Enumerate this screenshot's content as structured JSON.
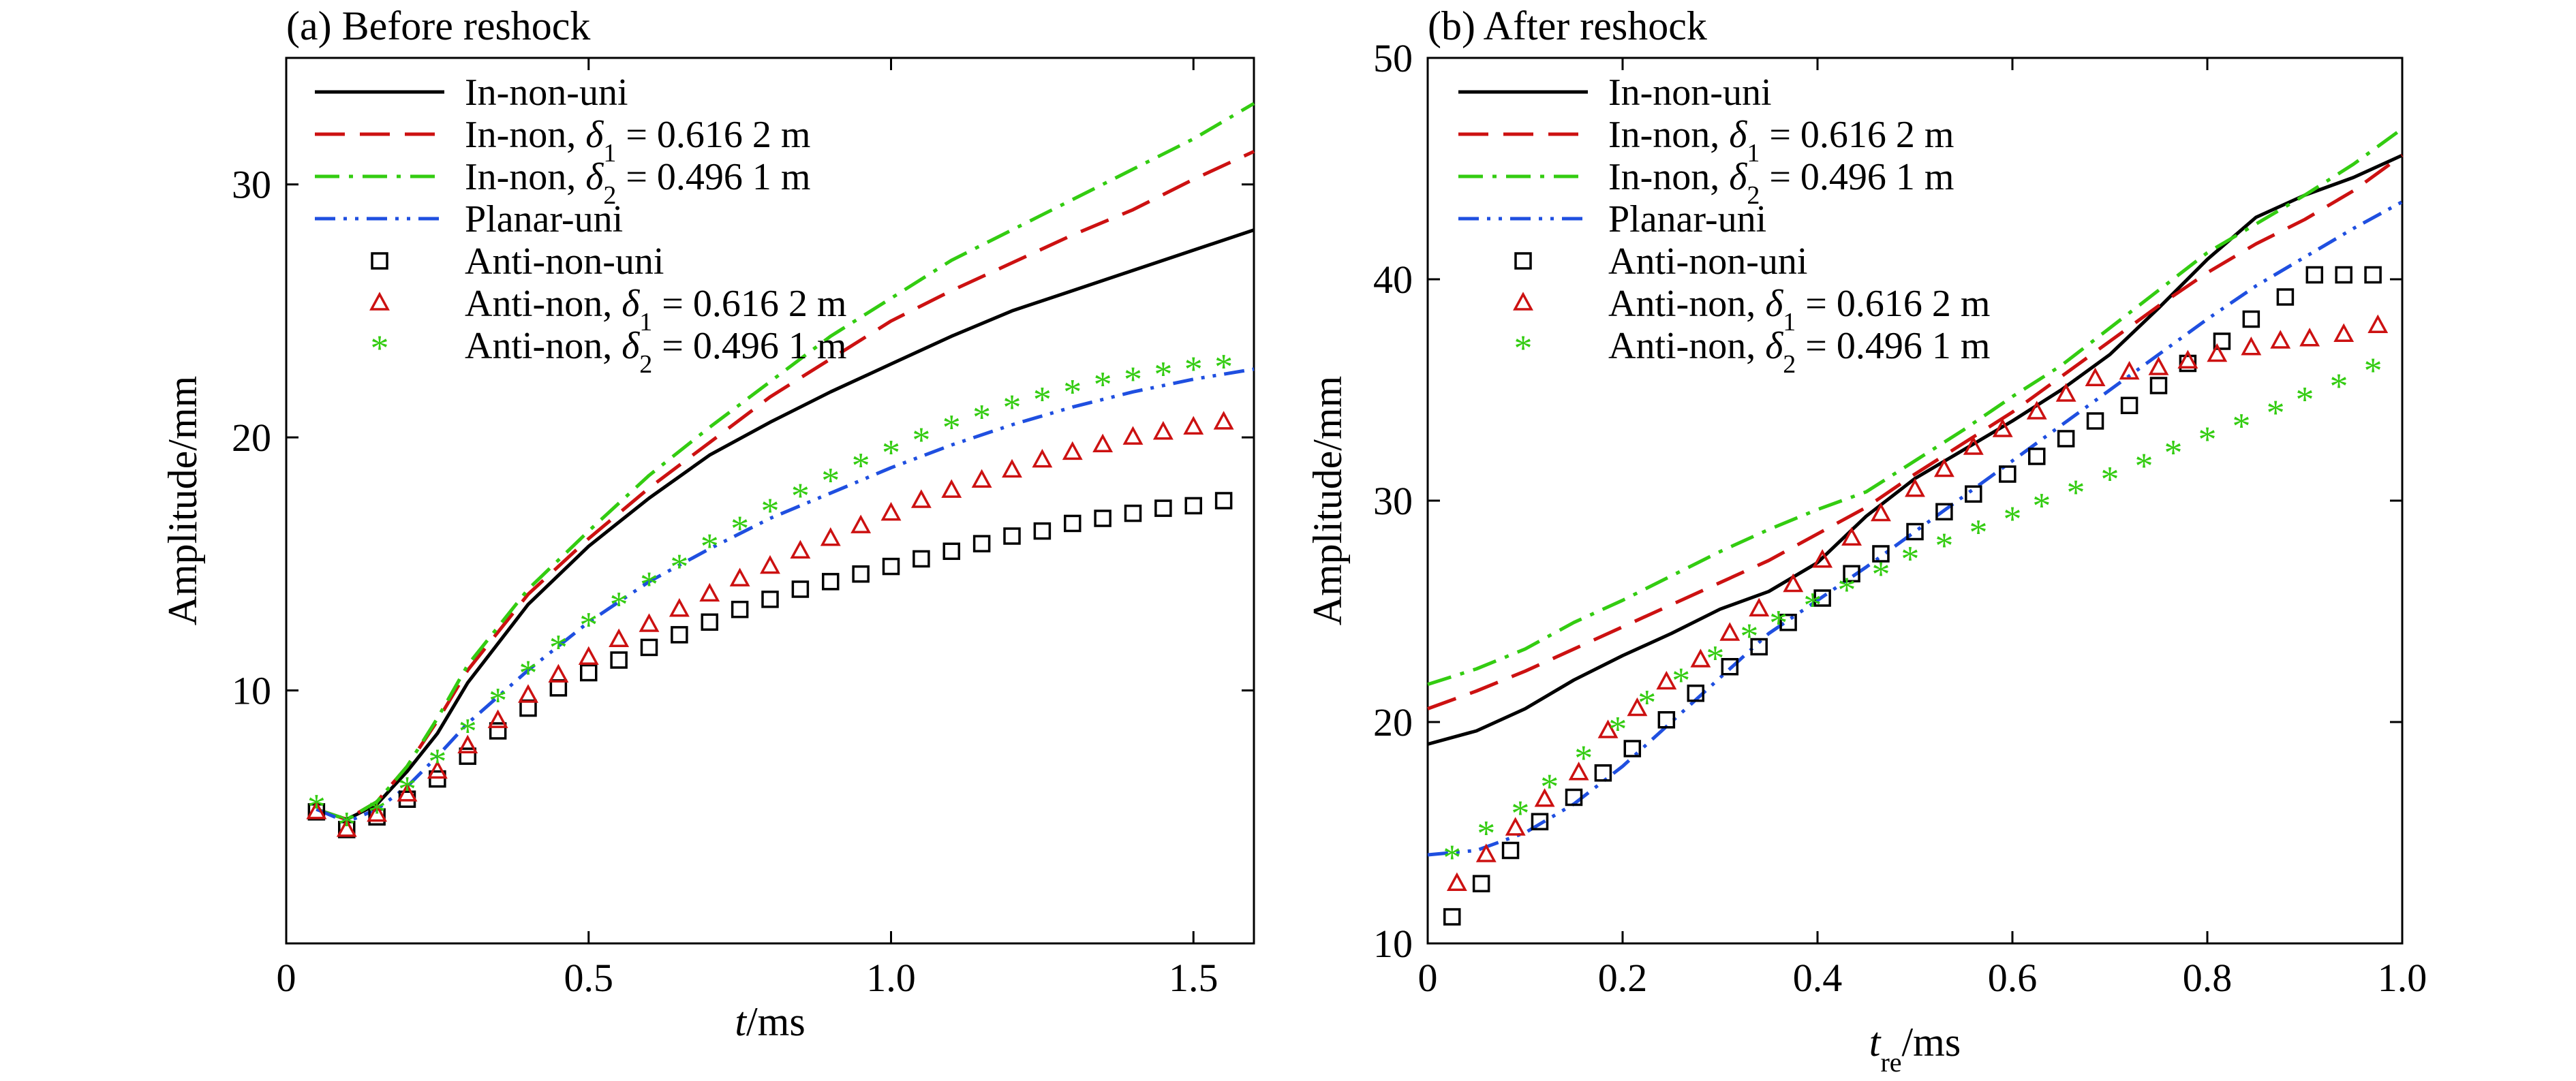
{
  "figure": {
    "panels": [
      {
        "title": "(a) Before reshock",
        "ylabel": "Amplitude/mm",
        "xlabel": {
          "main": "t",
          "sub": "",
          "unit": "/ms"
        },
        "xlim": [
          0,
          1.6
        ],
        "ylim": [
          0,
          35
        ],
        "xticks": [
          0,
          0.5,
          1.0,
          1.5
        ],
        "xtick_labels": [
          "0",
          "0.5",
          "1.0",
          "1.5"
        ],
        "yticks": [
          10,
          20,
          30
        ],
        "ytick_labels": [
          "10",
          "20",
          "30"
        ]
      },
      {
        "title": "(b) After reshock",
        "ylabel": "Amplitude/mm",
        "xlabel": {
          "main": "t",
          "sub": "re",
          "unit": "/ms"
        },
        "xlim": [
          0,
          1.0
        ],
        "ylim": [
          10,
          50
        ],
        "xticks": [
          0,
          0.2,
          0.4,
          0.6,
          0.8,
          1.0
        ],
        "xtick_labels": [
          "0",
          "0.2",
          "0.4",
          "0.6",
          "0.8",
          "1.0"
        ],
        "yticks": [
          10,
          20,
          30,
          40,
          50
        ],
        "ytick_labels": [
          "10",
          "20",
          "30",
          "40",
          "50"
        ]
      }
    ],
    "legend": [
      {
        "name": "In-non-uni",
        "prefix": "In-non-uni",
        "delta": "",
        "value": ""
      },
      {
        "name": "In-non, δ1 = 0.616 2 m",
        "prefix": "In-non, ",
        "delta": "1",
        "value": " = 0.616 2 m"
      },
      {
        "name": "In-non, δ2 = 0.496 1 m",
        "prefix": "In-non, ",
        "delta": "2",
        "value": " = 0.496 1 m"
      },
      {
        "name": "Planar-uni",
        "prefix": "Planar-uni",
        "delta": "",
        "value": ""
      },
      {
        "name": "Anti-non-uni",
        "prefix": "Anti-non-uni",
        "delta": "",
        "value": ""
      },
      {
        "name": "Anti-non, δ1 = 0.616 2 m",
        "prefix": "Anti-non, ",
        "delta": "1",
        "value": " = 0.616 2 m"
      },
      {
        "name": "Anti-non, δ2 = 0.496 1 m",
        "prefix": "Anti-non, ",
        "delta": "2",
        "value": " = 0.496 1 m"
      }
    ],
    "colors": {
      "in_non_uni": "#000000",
      "in_non_d1": "#cc1111",
      "in_non_d2": "#33cc11",
      "planar_uni": "#1f4fe0",
      "anti_non_uni": "#000000",
      "anti_non_d1": "#cc1111",
      "anti_non_d2": "#33cc11"
    }
  },
  "chart_data": [
    {
      "type": "line",
      "title": "(a) Before reshock",
      "xlabel": "t/ms",
      "ylabel": "Amplitude/mm",
      "xlim": [
        0,
        1.6
      ],
      "ylim": [
        0,
        35
      ],
      "grid": false,
      "legend_position": "top-left",
      "series": [
        {
          "name": "In-non-uni",
          "style": "solid",
          "color": "#000000",
          "x": [
            0.05,
            0.1,
            0.15,
            0.2,
            0.25,
            0.3,
            0.4,
            0.5,
            0.6,
            0.7,
            0.8,
            0.9,
            1.0,
            1.1,
            1.2,
            1.3,
            1.4,
            1.5,
            1.6
          ],
          "y": [
            5.3,
            4.9,
            5.5,
            6.8,
            8.3,
            10.3,
            13.4,
            15.7,
            17.6,
            19.3,
            20.6,
            21.8,
            22.9,
            24.0,
            25.0,
            25.8,
            26.6,
            27.4,
            28.2
          ]
        },
        {
          "name": "In-non, δ1 = 0.616 2 m",
          "style": "dash",
          "color": "#cc1111",
          "x": [
            0.05,
            0.1,
            0.15,
            0.2,
            0.25,
            0.3,
            0.4,
            0.5,
            0.6,
            0.7,
            0.8,
            0.9,
            1.0,
            1.1,
            1.2,
            1.3,
            1.4,
            1.5,
            1.6
          ],
          "y": [
            5.3,
            4.9,
            5.6,
            7.0,
            8.8,
            10.8,
            13.8,
            16.0,
            18.0,
            19.8,
            21.6,
            23.1,
            24.6,
            25.8,
            26.9,
            28.0,
            29.0,
            30.2,
            31.3
          ]
        },
        {
          "name": "In-non, δ2 = 0.496 1 m",
          "style": "dashdot",
          "color": "#33cc11",
          "x": [
            0.05,
            0.1,
            0.15,
            0.2,
            0.25,
            0.3,
            0.4,
            0.5,
            0.6,
            0.7,
            0.8,
            0.9,
            1.0,
            1.1,
            1.2,
            1.3,
            1.4,
            1.5,
            1.6
          ],
          "y": [
            5.3,
            4.9,
            5.6,
            7.0,
            8.9,
            11.0,
            14.0,
            16.3,
            18.5,
            20.4,
            22.2,
            24.0,
            25.5,
            27.0,
            28.2,
            29.4,
            30.6,
            31.8,
            33.2
          ]
        },
        {
          "name": "Planar-uni",
          "style": "dashdotdot",
          "color": "#1f4fe0",
          "x": [
            0.05,
            0.1,
            0.15,
            0.2,
            0.25,
            0.3,
            0.4,
            0.5,
            0.6,
            0.7,
            0.8,
            0.9,
            1.0,
            1.1,
            1.2,
            1.3,
            1.4,
            1.5,
            1.6
          ],
          "y": [
            5.3,
            4.8,
            5.3,
            6.2,
            7.4,
            8.7,
            10.8,
            12.7,
            14.3,
            15.6,
            16.8,
            17.8,
            18.8,
            19.7,
            20.5,
            21.2,
            21.8,
            22.3,
            22.7
          ]
        },
        {
          "name": "Anti-non-uni",
          "style": "square",
          "color": "#000000",
          "x": [
            0.05,
            0.1,
            0.15,
            0.2,
            0.25,
            0.3,
            0.35,
            0.4,
            0.45,
            0.5,
            0.55,
            0.6,
            0.65,
            0.7,
            0.75,
            0.8,
            0.85,
            0.9,
            0.95,
            1.0,
            1.05,
            1.1,
            1.15,
            1.2,
            1.25,
            1.3,
            1.35,
            1.4,
            1.45,
            1.5,
            1.55
          ],
          "y": [
            5.2,
            4.5,
            5.0,
            5.7,
            6.5,
            7.4,
            8.4,
            9.3,
            10.1,
            10.7,
            11.2,
            11.7,
            12.2,
            12.7,
            13.2,
            13.6,
            14.0,
            14.3,
            14.6,
            14.9,
            15.2,
            15.5,
            15.8,
            16.1,
            16.3,
            16.6,
            16.8,
            17.0,
            17.2,
            17.3,
            17.5
          ]
        },
        {
          "name": "Anti-non, δ1 = 0.616 2 m",
          "style": "triangle",
          "color": "#cc1111",
          "x": [
            0.05,
            0.1,
            0.15,
            0.2,
            0.25,
            0.3,
            0.35,
            0.4,
            0.45,
            0.5,
            0.55,
            0.6,
            0.65,
            0.7,
            0.75,
            0.8,
            0.85,
            0.9,
            0.95,
            1.0,
            1.05,
            1.1,
            1.15,
            1.2,
            1.25,
            1.3,
            1.35,
            1.4,
            1.45,
            1.5,
            1.55
          ],
          "y": [
            5.2,
            4.5,
            5.1,
            5.9,
            6.8,
            7.8,
            8.8,
            9.8,
            10.6,
            11.3,
            12.0,
            12.6,
            13.2,
            13.8,
            14.4,
            14.9,
            15.5,
            16.0,
            16.5,
            17.0,
            17.5,
            17.9,
            18.3,
            18.7,
            19.1,
            19.4,
            19.7,
            20.0,
            20.2,
            20.4,
            20.6
          ]
        },
        {
          "name": "Anti-non, δ2 = 0.496 1 m",
          "style": "star",
          "color": "#33cc11",
          "x": [
            0.05,
            0.1,
            0.15,
            0.2,
            0.25,
            0.3,
            0.35,
            0.4,
            0.45,
            0.5,
            0.55,
            0.6,
            0.65,
            0.7,
            0.75,
            0.8,
            0.85,
            0.9,
            0.95,
            1.0,
            1.05,
            1.1,
            1.15,
            1.2,
            1.25,
            1.3,
            1.35,
            1.4,
            1.45,
            1.5,
            1.55
          ],
          "y": [
            5.5,
            4.8,
            5.3,
            6.2,
            7.3,
            8.5,
            9.7,
            10.8,
            11.8,
            12.7,
            13.5,
            14.3,
            15.0,
            15.8,
            16.5,
            17.2,
            17.8,
            18.4,
            19.0,
            19.5,
            20.0,
            20.5,
            20.9,
            21.3,
            21.6,
            21.9,
            22.2,
            22.4,
            22.6,
            22.8,
            22.9
          ]
        }
      ]
    },
    {
      "type": "line",
      "title": "(b) After reshock",
      "xlabel": "tre/ms",
      "ylabel": "Amplitude/mm",
      "xlim": [
        0,
        1.0
      ],
      "ylim": [
        10,
        50
      ],
      "grid": false,
      "legend_position": "top-left",
      "series": [
        {
          "name": "In-non-uni",
          "style": "solid",
          "color": "#000000",
          "x": [
            0,
            0.05,
            0.1,
            0.15,
            0.2,
            0.25,
            0.3,
            0.35,
            0.4,
            0.45,
            0.5,
            0.55,
            0.6,
            0.65,
            0.7,
            0.75,
            0.8,
            0.85,
            0.9,
            0.95,
            1.0
          ],
          "y": [
            19.0,
            19.6,
            20.6,
            21.9,
            23.0,
            24.0,
            25.1,
            25.9,
            27.2,
            29.3,
            31.0,
            32.3,
            33.6,
            35.0,
            36.6,
            38.7,
            40.9,
            42.8,
            43.8,
            44.6,
            45.6
          ]
        },
        {
          "name": "In-non, δ1 = 0.616 2 m",
          "style": "dash",
          "color": "#cc1111",
          "x": [
            0,
            0.05,
            0.1,
            0.15,
            0.2,
            0.25,
            0.3,
            0.35,
            0.4,
            0.45,
            0.5,
            0.55,
            0.6,
            0.65,
            0.7,
            0.75,
            0.8,
            0.85,
            0.9,
            0.95,
            1.0
          ],
          "y": [
            20.6,
            21.4,
            22.3,
            23.3,
            24.3,
            25.3,
            26.3,
            27.3,
            28.5,
            29.7,
            31.2,
            32.6,
            34.0,
            35.6,
            37.2,
            38.8,
            40.3,
            41.6,
            42.7,
            44.0,
            45.6
          ]
        },
        {
          "name": "In-non, δ2 = 0.496 1 m",
          "style": "dashdot",
          "color": "#33cc11",
          "x": [
            0,
            0.05,
            0.1,
            0.15,
            0.2,
            0.25,
            0.3,
            0.35,
            0.4,
            0.45,
            0.5,
            0.55,
            0.6,
            0.65,
            0.7,
            0.75,
            0.8,
            0.85,
            0.9,
            0.95,
            1.0
          ],
          "y": [
            21.7,
            22.4,
            23.3,
            24.5,
            25.5,
            26.6,
            27.7,
            28.7,
            29.6,
            30.4,
            31.8,
            33.2,
            34.7,
            36.1,
            37.8,
            39.5,
            41.2,
            42.5,
            43.8,
            45.2,
            46.8
          ]
        },
        {
          "name": "Planar-uni",
          "style": "dashdotdot",
          "color": "#1f4fe0",
          "x": [
            0,
            0.05,
            0.1,
            0.15,
            0.2,
            0.25,
            0.3,
            0.35,
            0.4,
            0.45,
            0.5,
            0.55,
            0.6,
            0.65,
            0.7,
            0.75,
            0.8,
            0.85,
            0.9,
            0.95,
            1.0
          ],
          "y": [
            14.0,
            14.2,
            15.0,
            16.3,
            18.0,
            20.0,
            22.0,
            24.0,
            25.5,
            27.0,
            28.6,
            30.2,
            31.8,
            33.4,
            35.0,
            36.6,
            38.2,
            39.7,
            41.0,
            42.3,
            43.5
          ]
        },
        {
          "name": "Anti-non-uni",
          "style": "square",
          "color": "#000000",
          "x": [
            0.025,
            0.055,
            0.085,
            0.115,
            0.15,
            0.18,
            0.21,
            0.245,
            0.275,
            0.31,
            0.34,
            0.37,
            0.405,
            0.435,
            0.465,
            0.5,
            0.53,
            0.56,
            0.595,
            0.625,
            0.655,
            0.685,
            0.72,
            0.75,
            0.78,
            0.815,
            0.845,
            0.88,
            0.91,
            0.94,
            0.97
          ],
          "y": [
            11.2,
            12.7,
            14.2,
            15.5,
            16.6,
            17.7,
            18.8,
            20.1,
            21.3,
            22.5,
            23.4,
            24.5,
            25.6,
            26.7,
            27.6,
            28.6,
            29.5,
            30.3,
            31.2,
            32.0,
            32.8,
            33.6,
            34.3,
            35.2,
            36.2,
            37.2,
            38.2,
            39.2,
            40.2,
            40.2,
            40.2
          ]
        },
        {
          "name": "Anti-non, δ1 = 0.616 2 m",
          "style": "triangle",
          "color": "#cc1111",
          "x": [
            0.03,
            0.06,
            0.09,
            0.12,
            0.155,
            0.185,
            0.215,
            0.245,
            0.28,
            0.31,
            0.34,
            0.375,
            0.405,
            0.435,
            0.465,
            0.5,
            0.53,
            0.56,
            0.59,
            0.625,
            0.655,
            0.685,
            0.72,
            0.75,
            0.78,
            0.81,
            0.845,
            0.875,
            0.905,
            0.94,
            0.975
          ],
          "y": [
            12.7,
            14.0,
            15.2,
            16.5,
            17.7,
            19.6,
            20.6,
            21.8,
            22.8,
            24.0,
            25.1,
            26.2,
            27.3,
            28.3,
            29.4,
            30.5,
            31.4,
            32.4,
            33.2,
            34.0,
            34.8,
            35.5,
            35.8,
            36.0,
            36.3,
            36.6,
            36.9,
            37.2,
            37.3,
            37.5,
            37.9
          ]
        },
        {
          "name": "Anti-non, δ2 = 0.496 1 m",
          "style": "star",
          "color": "#33cc11",
          "x": [
            0.025,
            0.06,
            0.095,
            0.125,
            0.16,
            0.195,
            0.225,
            0.26,
            0.295,
            0.33,
            0.36,
            0.395,
            0.43,
            0.465,
            0.495,
            0.53,
            0.565,
            0.6,
            0.63,
            0.665,
            0.7,
            0.735,
            0.765,
            0.8,
            0.835,
            0.87,
            0.9,
            0.935,
            0.97
          ],
          "y": [
            14.0,
            15.1,
            16.0,
            17.2,
            18.5,
            19.8,
            21.0,
            22.0,
            23.0,
            24.0,
            24.6,
            25.4,
            26.1,
            26.8,
            27.5,
            28.1,
            28.7,
            29.3,
            29.9,
            30.5,
            31.1,
            31.7,
            32.3,
            32.9,
            33.5,
            34.1,
            34.7,
            35.3,
            36.0
          ]
        }
      ]
    }
  ]
}
